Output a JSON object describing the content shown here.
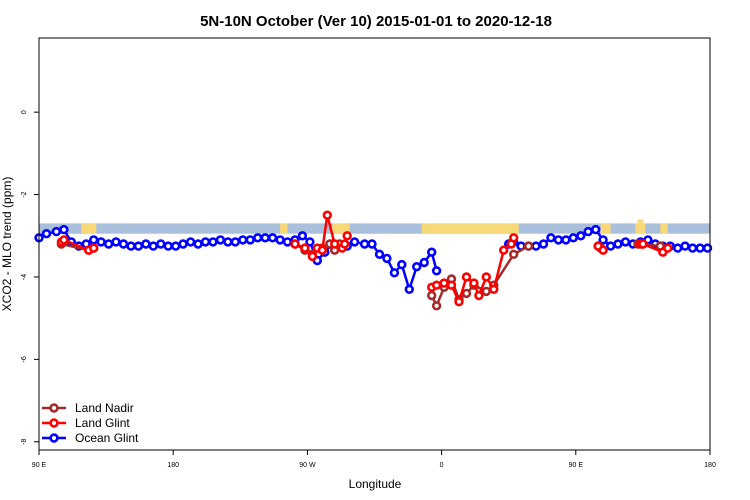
{
  "chart_data": {
    "type": "line",
    "title": "5N-10N October (Ver 10)   2015-01-01 to 2020-12-18",
    "xlabel": "Longitude",
    "ylabel": "XCO2 - MLO trend (ppm)",
    "xlim": [
      -90,
      180
    ],
    "ylim": [
      -8.2,
      1.8
    ],
    "xticks": [
      {
        "value": -90,
        "label": "90 E"
      },
      {
        "value": -36,
        "label": "180"
      },
      {
        "value": 18,
        "label": "90 W"
      },
      {
        "value": 72,
        "label": "0"
      },
      {
        "value": 126,
        "label": "90 E"
      },
      {
        "value": 180,
        "label": "180"
      }
    ],
    "yticks": [
      {
        "value": 0,
        "label": "0"
      },
      {
        "value": -2,
        "label": "-2"
      },
      {
        "value": -4,
        "label": "-4"
      },
      {
        "value": -6,
        "label": "-6"
      },
      {
        "value": -8,
        "label": "-8"
      }
    ],
    "land_band": {
      "y_top": -2.7,
      "y_bottom": -2.95,
      "ocean_color": "#a9bfdc",
      "land_color": "#f7d97a",
      "land_segments": [
        [
          -73,
          -67
        ],
        [
          -72,
          -70
        ],
        [
          -69,
          -67
        ],
        [
          7,
          10
        ],
        [
          28,
          35
        ],
        [
          64,
          103
        ],
        [
          136,
          140
        ],
        [
          150,
          154
        ],
        [
          160,
          163
        ]
      ]
    },
    "series": [
      {
        "name": "Land Nadir",
        "color": "#a52a2a",
        "points": [
          [
            -81,
            -3.2
          ],
          [
            -70,
            -3.35
          ],
          [
            -68,
            -3.3
          ],
          [
            13,
            -3.2
          ],
          [
            17,
            -3.35
          ],
          [
            20,
            -3.45
          ],
          [
            24,
            -3.3
          ],
          [
            27,
            -3.2
          ],
          [
            29,
            -3.35
          ],
          [
            31,
            -3.2
          ],
          [
            68,
            -4.45
          ],
          [
            70,
            -4.7
          ],
          [
            73,
            -4.25
          ],
          [
            76,
            -4.05
          ],
          [
            79,
            -4.55
          ],
          [
            82,
            -4.4
          ],
          [
            85,
            -4.2
          ],
          [
            90,
            -4.35
          ],
          [
            93,
            -4.2
          ],
          [
            101,
            -3.45
          ],
          [
            107,
            -3.25
          ],
          [
            135,
            -3.25
          ],
          [
            136,
            -3.3
          ],
          [
            151,
            -3.2
          ],
          [
            153,
            -3.2
          ],
          [
            160,
            -3.25
          ]
        ]
      },
      {
        "name": "Land Glint",
        "color": "#ff0000",
        "points": [
          [
            -81,
            -3.15
          ],
          [
            -80,
            -3.1
          ],
          [
            -70,
            -3.35
          ],
          [
            -68,
            -3.3
          ],
          [
            13,
            -3.2
          ],
          [
            17,
            -3.3
          ],
          [
            20,
            -3.5
          ],
          [
            22,
            -3.3
          ],
          [
            24,
            -3.35
          ],
          [
            26,
            -2.5
          ],
          [
            29,
            -3.2
          ],
          [
            32,
            -3.3
          ],
          [
            33,
            -3.2
          ],
          [
            34,
            -3.0
          ],
          [
            68,
            -4.25
          ],
          [
            70,
            -4.2
          ],
          [
            73,
            -4.15
          ],
          [
            76,
            -4.2
          ],
          [
            79,
            -4.6
          ],
          [
            82,
            -4.0
          ],
          [
            85,
            -4.15
          ],
          [
            87,
            -4.45
          ],
          [
            90,
            -4.0
          ],
          [
            93,
            -4.3
          ],
          [
            97,
            -3.35
          ],
          [
            100,
            -3.2
          ],
          [
            101,
            -3.05
          ],
          [
            135,
            -3.25
          ],
          [
            137,
            -3.35
          ],
          [
            152,
            -3.2
          ],
          [
            153,
            -3.2
          ],
          [
            161,
            -3.4
          ],
          [
            163,
            -3.3
          ]
        ]
      },
      {
        "name": "Ocean Glint",
        "color": "#0000ff",
        "points": [
          [
            -90,
            -3.05
          ],
          [
            -87,
            -2.95
          ],
          [
            -83,
            -2.9
          ],
          [
            -80,
            -2.85
          ],
          [
            -77,
            -3.15
          ],
          [
            -74,
            -3.25
          ],
          [
            -71,
            -3.2
          ],
          [
            -68,
            -3.1
          ],
          [
            -65,
            -3.15
          ],
          [
            -62,
            -3.2
          ],
          [
            -59,
            -3.15
          ],
          [
            -56,
            -3.2
          ],
          [
            -53,
            -3.25
          ],
          [
            -50,
            -3.25
          ],
          [
            -47,
            -3.2
          ],
          [
            -44,
            -3.25
          ],
          [
            -41,
            -3.2
          ],
          [
            -38,
            -3.25
          ],
          [
            -35,
            -3.25
          ],
          [
            -32,
            -3.2
          ],
          [
            -29,
            -3.15
          ],
          [
            -26,
            -3.2
          ],
          [
            -23,
            -3.15
          ],
          [
            -20,
            -3.15
          ],
          [
            -17,
            -3.1
          ],
          [
            -14,
            -3.15
          ],
          [
            -11,
            -3.15
          ],
          [
            -8,
            -3.1
          ],
          [
            -5,
            -3.1
          ],
          [
            -2,
            -3.05
          ],
          [
            1,
            -3.05
          ],
          [
            4,
            -3.05
          ],
          [
            7,
            -3.1
          ],
          [
            10,
            -3.15
          ],
          [
            13,
            -3.1
          ],
          [
            16,
            -3.0
          ],
          [
            19,
            -3.15
          ],
          [
            22,
            -3.6
          ],
          [
            25,
            -3.4
          ],
          [
            28,
            -3.2
          ],
          [
            31,
            -3.25
          ],
          [
            34,
            -3.25
          ],
          [
            37,
            -3.15
          ],
          [
            41,
            -3.2
          ],
          [
            44,
            -3.2
          ],
          [
            47,
            -3.45
          ],
          [
            50,
            -3.55
          ],
          [
            53,
            -3.9
          ],
          [
            56,
            -3.7
          ],
          [
            59,
            -4.3
          ],
          [
            62,
            -3.75
          ],
          [
            65,
            -3.65
          ],
          [
            68,
            -3.4
          ],
          [
            70,
            -3.85
          ],
          [
            99,
            -3.2
          ],
          [
            101,
            -3.15
          ],
          [
            104,
            -3.25
          ],
          [
            107,
            -3.25
          ],
          [
            110,
            -3.25
          ],
          [
            113,
            -3.2
          ],
          [
            116,
            -3.05
          ],
          [
            119,
            -3.1
          ],
          [
            122,
            -3.1
          ],
          [
            125,
            -3.05
          ],
          [
            128,
            -3.0
          ],
          [
            131,
            -2.9
          ],
          [
            134,
            -2.85
          ],
          [
            137,
            -3.1
          ],
          [
            140,
            -3.25
          ],
          [
            143,
            -3.2
          ],
          [
            146,
            -3.15
          ],
          [
            149,
            -3.2
          ],
          [
            152,
            -3.15
          ],
          [
            155,
            -3.1
          ],
          [
            158,
            -3.2
          ],
          [
            161,
            -3.25
          ],
          [
            164,
            -3.25
          ],
          [
            167,
            -3.3
          ],
          [
            170,
            -3.25
          ],
          [
            173,
            -3.3
          ],
          [
            176,
            -3.3
          ],
          [
            179,
            -3.3
          ]
        ]
      }
    ],
    "legend": {
      "position": "bottom-left",
      "entries": [
        "Land Nadir",
        "Land Glint",
        "Ocean Glint"
      ]
    }
  }
}
